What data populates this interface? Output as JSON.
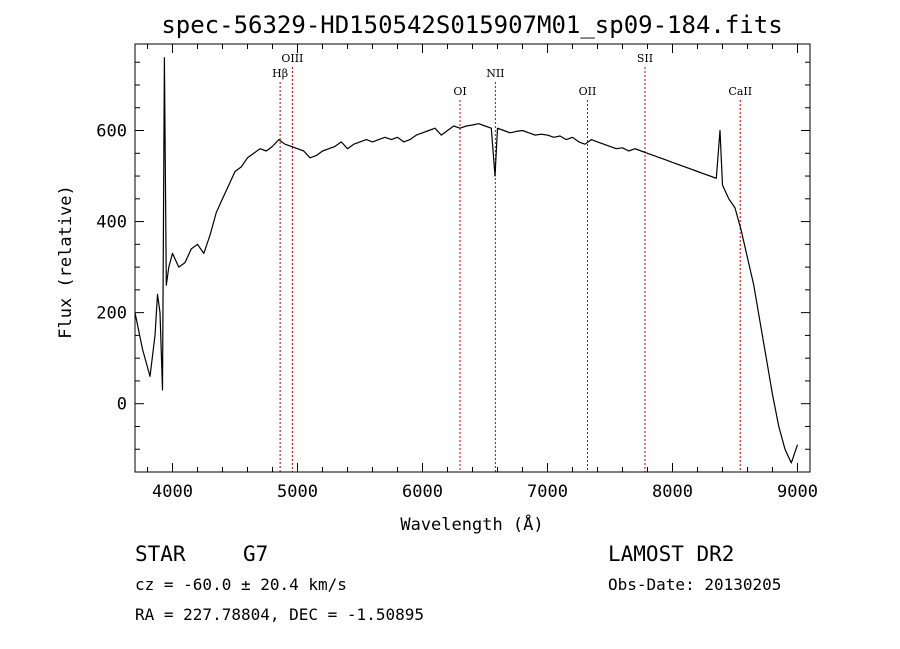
{
  "chart_data": {
    "type": "line",
    "title": "spec-56329-HD150542S015907M01_sp09-184.fits",
    "xlabel": "Wavelength (Å)",
    "ylabel": "Flux (relative)",
    "xlim": [
      3700,
      9100
    ],
    "ylim": [
      -150,
      790
    ],
    "x_ticks": [
      4000,
      5000,
      6000,
      7000,
      8000,
      9000
    ],
    "x_tick_labels": [
      "4000",
      "5000",
      "6000",
      "7000",
      "8000",
      "9000"
    ],
    "y_ticks": [
      0,
      200,
      400,
      600
    ],
    "y_tick_labels": [
      "0",
      "200",
      "400",
      "600"
    ],
    "grid": false,
    "line_color": "#000000",
    "series": [
      {
        "x": [
          3700,
          3760,
          3820,
          3860,
          3880,
          3900,
          3920,
          3935,
          3950,
          3970,
          4000,
          4050,
          4100,
          4150,
          4200,
          4250,
          4300,
          4350,
          4400,
          4450,
          4500,
          4550,
          4600,
          4650,
          4700,
          4750,
          4800,
          4850,
          4900,
          4950,
          5000,
          5050,
          5100,
          5150,
          5200,
          5250,
          5300,
          5350,
          5400,
          5450,
          5500,
          5550,
          5600,
          5650,
          5700,
          5750,
          5800,
          5850,
          5900,
          5950,
          6000,
          6050,
          6100,
          6150,
          6200,
          6250,
          6300,
          6350,
          6400,
          6450,
          6500,
          6550,
          6580,
          6600,
          6650,
          6700,
          6750,
          6800,
          6850,
          6900,
          6950,
          7000,
          7050,
          7100,
          7150,
          7200,
          7250,
          7300,
          7350,
          7400,
          7450,
          7500,
          7550,
          7600,
          7650,
          7700,
          7750,
          7800,
          7850,
          7900,
          7950,
          8000,
          8050,
          8100,
          8150,
          8200,
          8250,
          8300,
          8350,
          8380,
          8400,
          8450,
          8500,
          8550,
          8600,
          8650,
          8700,
          8750,
          8800,
          8850,
          8900,
          8950,
          9000
        ],
        "values": [
          200,
          120,
          60,
          150,
          240,
          200,
          30,
          760,
          260,
          300,
          330,
          300,
          310,
          340,
          350,
          330,
          370,
          420,
          450,
          480,
          510,
          520,
          540,
          550,
          560,
          555,
          565,
          580,
          570,
          565,
          560,
          555,
          540,
          545,
          555,
          560,
          565,
          575,
          560,
          570,
          575,
          580,
          575,
          580,
          585,
          580,
          585,
          575,
          580,
          590,
          595,
          600,
          605,
          590,
          600,
          610,
          605,
          610,
          612,
          615,
          610,
          605,
          500,
          605,
          600,
          595,
          598,
          600,
          595,
          590,
          592,
          590,
          585,
          588,
          580,
          585,
          575,
          570,
          580,
          575,
          570,
          565,
          560,
          562,
          555,
          560,
          555,
          550,
          545,
          540,
          535,
          530,
          525,
          520,
          515,
          510,
          505,
          500,
          495,
          600,
          480,
          450,
          430,
          380,
          320,
          260,
          180,
          100,
          20,
          -50,
          -100,
          -130,
          -90
        ]
      }
    ],
    "line_markers": [
      {
        "label": "Hβ",
        "x": 4861,
        "row": 2
      },
      {
        "label": "OIII",
        "x": 4959,
        "row": 1
      },
      {
        "label": "OI",
        "x": 6300,
        "row": 3
      },
      {
        "label": "NII",
        "x": 6583,
        "row": 2
      },
      {
        "label": "OII",
        "x": 7320,
        "row": 3
      },
      {
        "label": "SII",
        "x": 7780,
        "row": 1
      },
      {
        "label": "CaII",
        "x": 8542,
        "row": 3
      }
    ],
    "marker_color": "#c00000"
  },
  "footer": {
    "object_class": "STAR",
    "subclass": "G7",
    "survey": "LAMOST DR2",
    "redshift": "cz = -60.0 ± 20.4 km/s",
    "obs_date": "Obs-Date: 20130205",
    "coords": "RA = 227.78804, DEC =  -1.50895"
  }
}
